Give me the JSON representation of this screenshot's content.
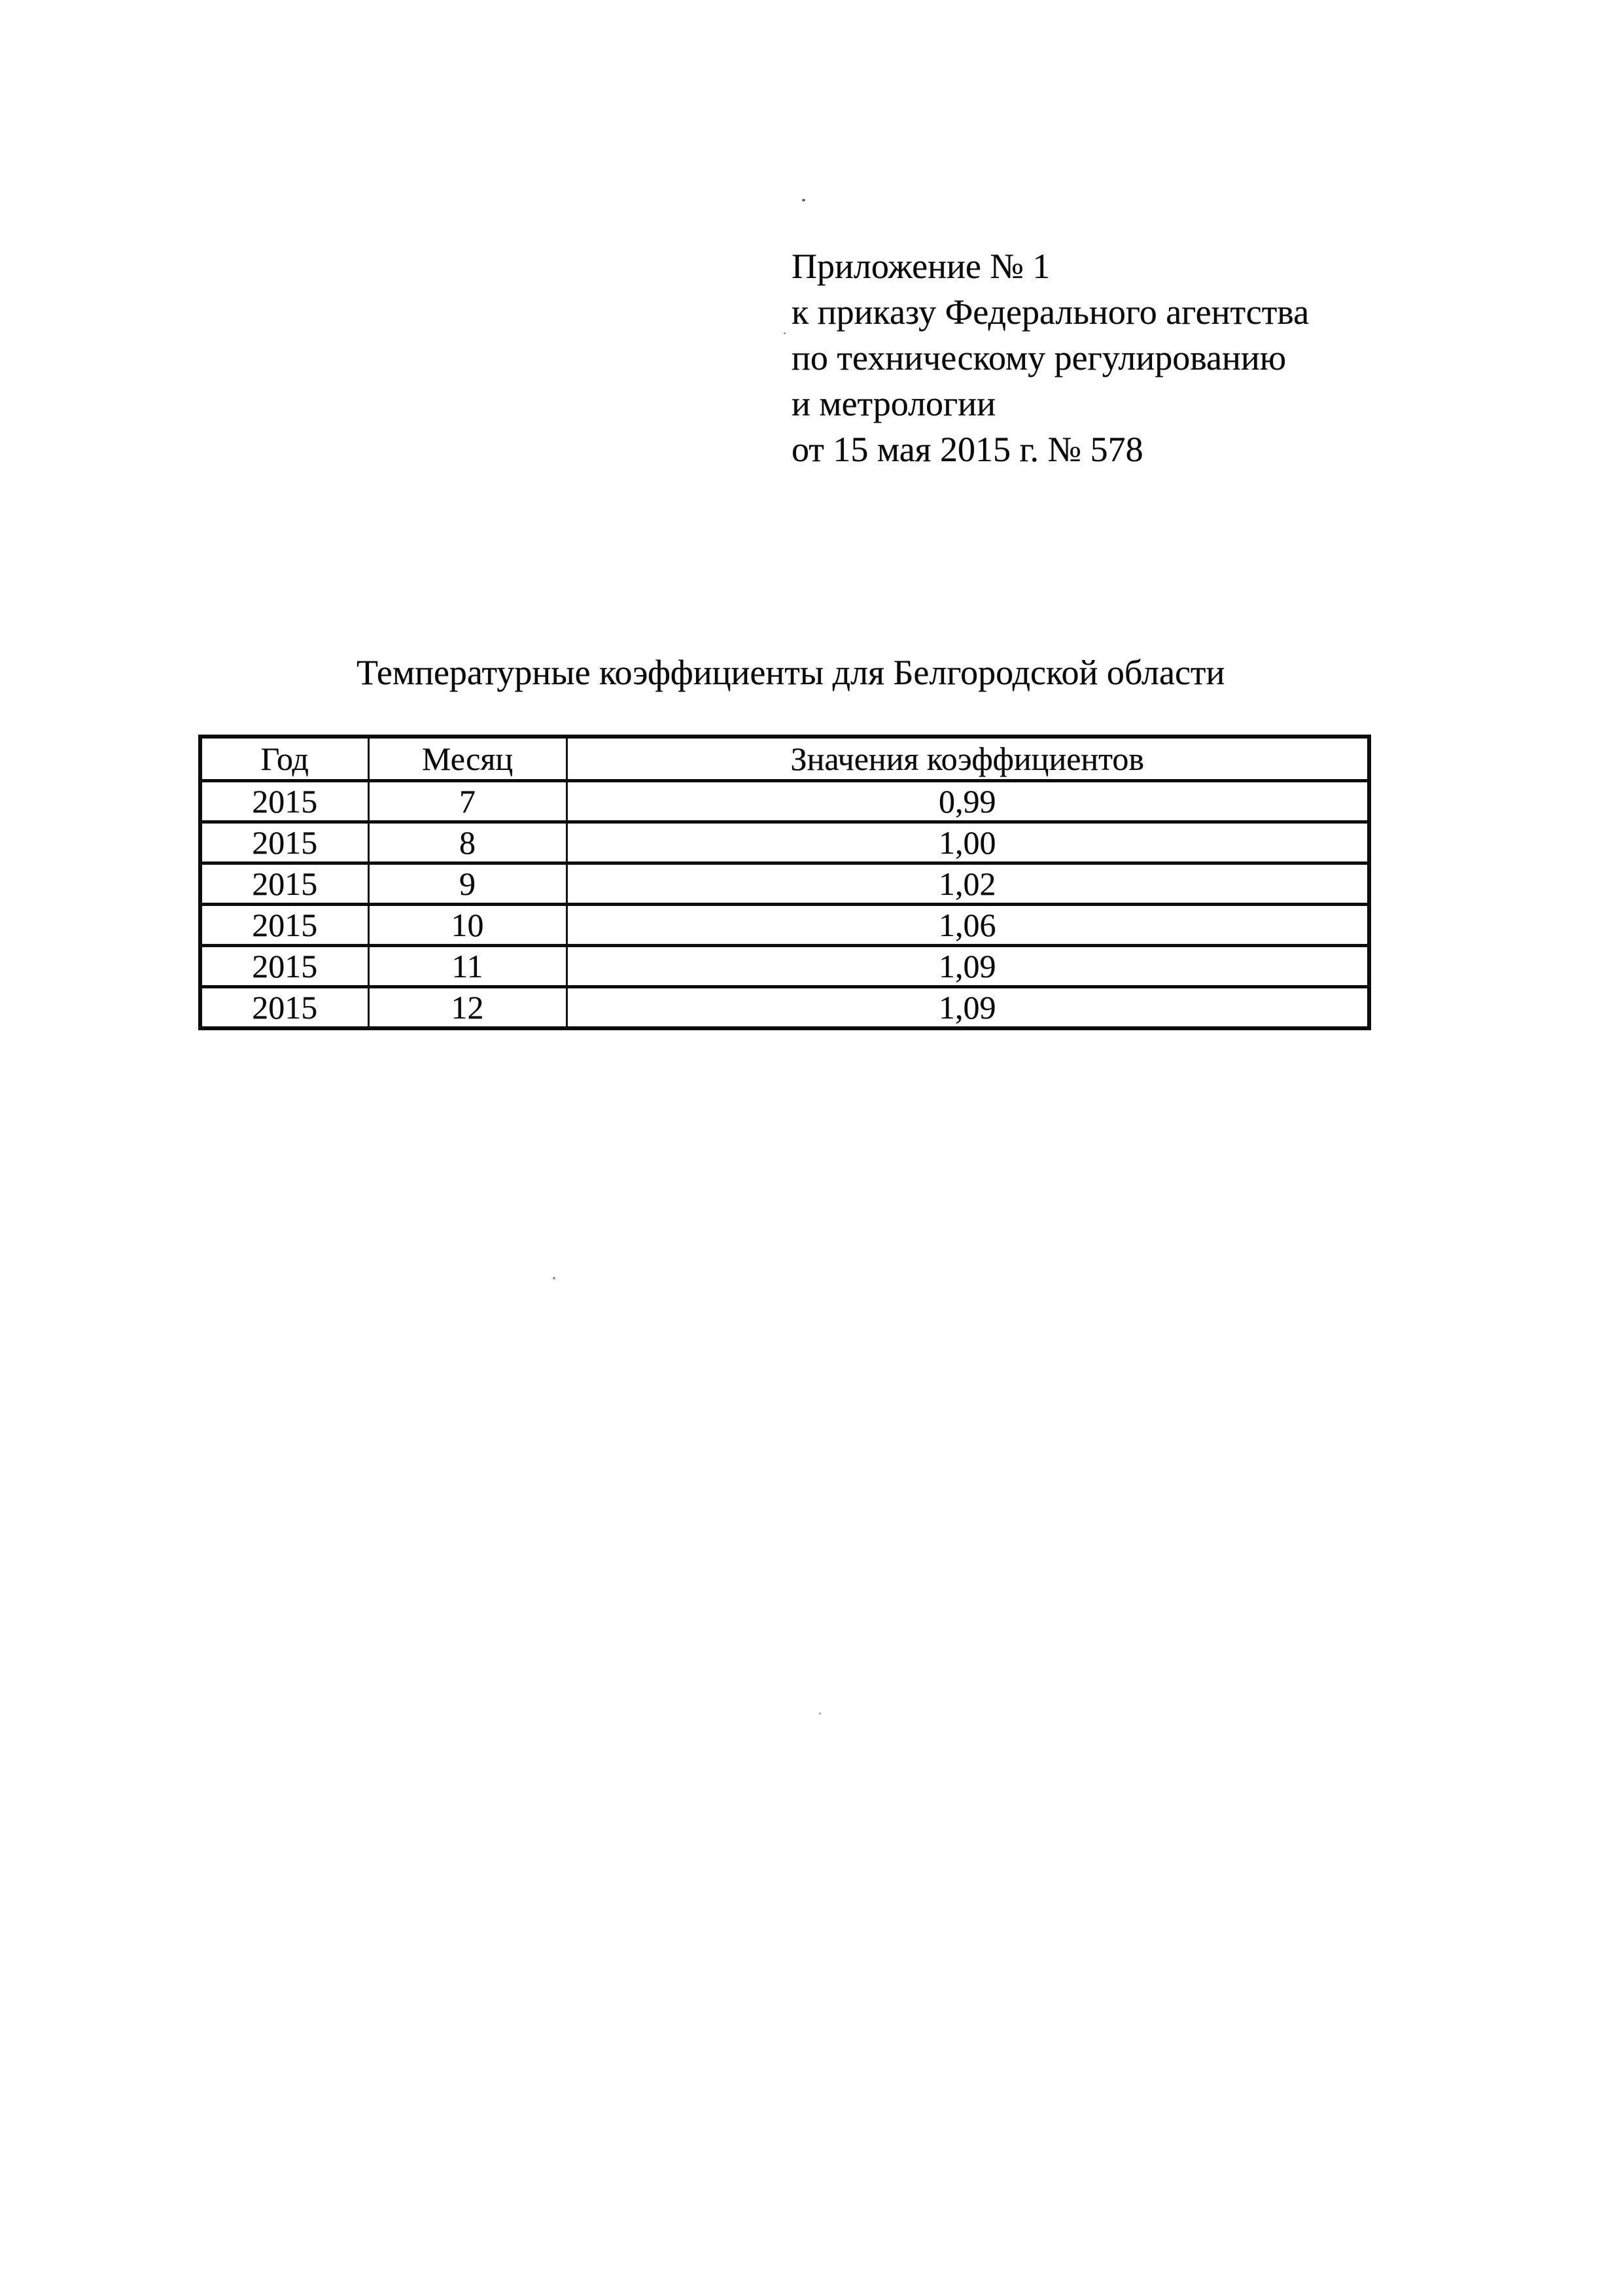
{
  "document": {
    "appendix_lines": [
      "Приложение № 1",
      "к приказу Федерального агентства",
      "по техническому регулированию",
      "и метрологии",
      "от 15 мая 2015 г. № 578"
    ],
    "title": "Температурные коэффициенты для Белгородской области",
    "table": {
      "headers": [
        "Год",
        "Месяц",
        "Значения коэффициентов"
      ],
      "rows": [
        [
          "2015",
          "7",
          "0,99"
        ],
        [
          "2015",
          "8",
          "1,00"
        ],
        [
          "2015",
          "9",
          "1,02"
        ],
        [
          "2015",
          "10",
          "1,06"
        ],
        [
          "2015",
          "11",
          "1,09"
        ],
        [
          "2015",
          "12",
          "1,09"
        ]
      ]
    },
    "ink_color": "#0a0a0a",
    "paper_color": "#ffffff"
  }
}
